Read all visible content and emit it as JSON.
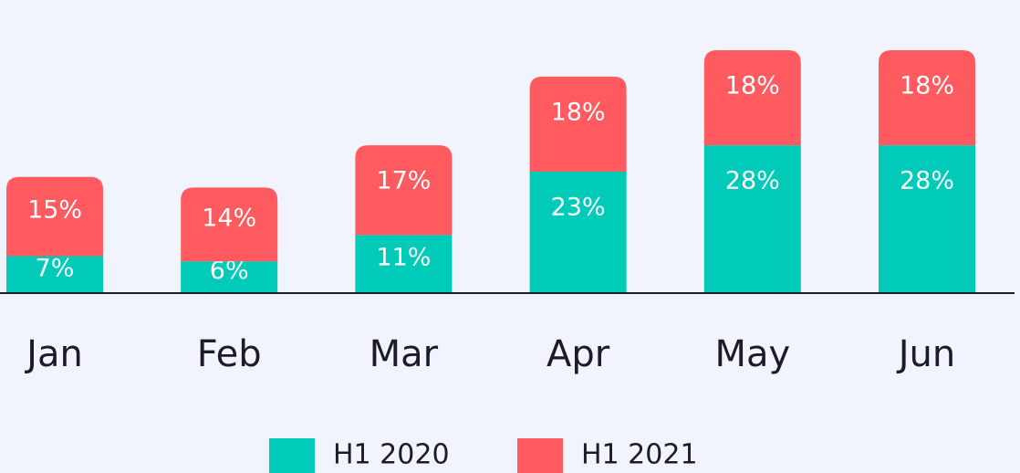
{
  "chart_data": {
    "type": "stacked-bar",
    "categories": [
      "Jan",
      "Feb",
      "Mar",
      "Apr",
      "May",
      "Jun"
    ],
    "series": [
      {
        "name": "H1 2020",
        "color": "#00cbb9",
        "values": [
          7,
          6,
          11,
          23,
          28,
          28
        ],
        "value_labels": [
          "7%",
          "6%",
          "11%",
          "23%",
          "28%",
          "28%"
        ]
      },
      {
        "name": "H1 2021",
        "color": "#ff5a5f",
        "values": [
          15,
          14,
          17,
          18,
          18,
          18
        ],
        "value_labels": [
          "15%",
          "14%",
          "17%",
          "18%",
          "18%",
          "18%"
        ]
      }
    ],
    "legend": "bottom"
  }
}
